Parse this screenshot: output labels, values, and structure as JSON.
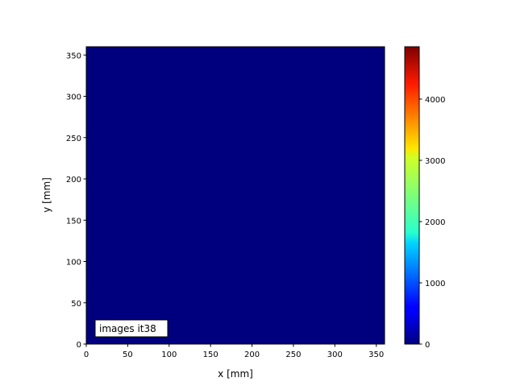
{
  "chart_data": {
    "type": "heatmap",
    "title": "",
    "xlabel": "x [mm]",
    "ylabel": "y [mm]",
    "xlim": [
      0,
      360
    ],
    "ylim": [
      0,
      360
    ],
    "xticks": [
      0,
      50,
      100,
      150,
      200,
      250,
      300,
      350
    ],
    "yticks": [
      0,
      50,
      100,
      150,
      200,
      250,
      300,
      350
    ],
    "image_value": 0,
    "image_color": "#00007f",
    "colormap": "jet",
    "colorbar": {
      "range": [
        0,
        4855
      ],
      "ticks": [
        0,
        1000,
        2000,
        3000,
        4000
      ],
      "placement": "right"
    },
    "annotation": {
      "text": "images it38",
      "placement": "bottom-left"
    },
    "grid": false
  }
}
